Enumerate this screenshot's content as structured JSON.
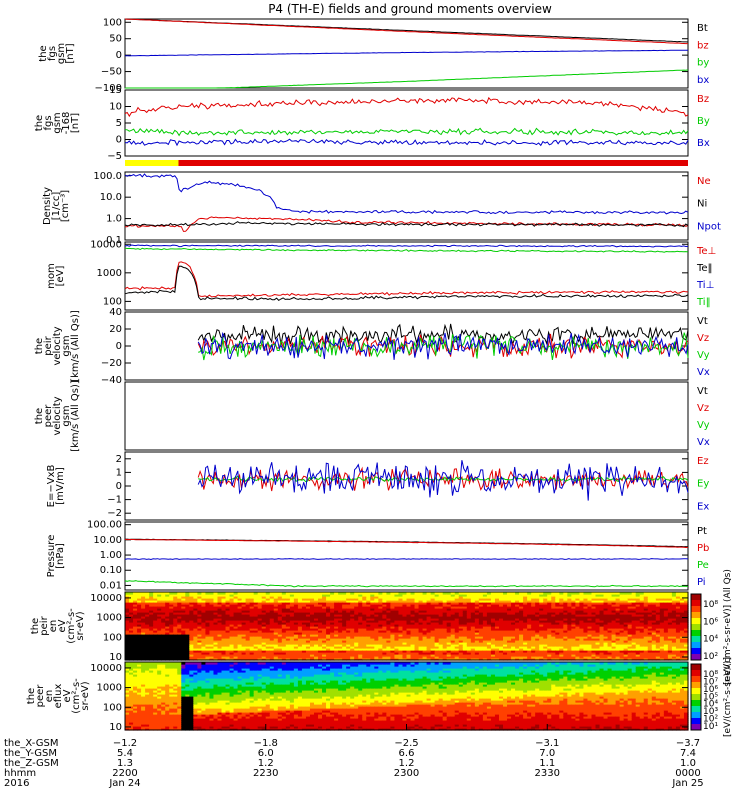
{
  "title": "P4 (TH-E) fields and ground moments overview",
  "colors": {
    "black": "#000000",
    "red": "#e00000",
    "green": "#00cc00",
    "blue": "#0000cc",
    "yellow": "#ffff00"
  },
  "chart_data": [
    {
      "type": "line",
      "id": "fgs",
      "ylabel_lines": [
        "the",
        "fgs",
        "gsm",
        "[nT]"
      ],
      "yticks": [
        {
          "v": 100,
          "t": "100"
        },
        {
          "v": 50,
          "t": "50"
        },
        {
          "v": 0,
          "t": "0"
        },
        {
          "v": -50,
          "t": "−50"
        },
        {
          "v": -100,
          "t": "−100"
        }
      ],
      "ylim": [
        -100,
        110
      ],
      "log": false,
      "series": [
        {
          "name": "Bt",
          "color": "black",
          "x": [
            0,
            0.5,
            1
          ],
          "y": [
            110,
            75,
            40
          ],
          "noise": 0.4
        },
        {
          "name": "bz",
          "color": "red",
          "x": [
            0,
            0.5,
            1
          ],
          "y": [
            110,
            72,
            35
          ],
          "noise": 0.4
        },
        {
          "name": "by",
          "color": "green",
          "x": [
            0,
            0.22,
            0.5,
            1
          ],
          "y": [
            -110,
            -97,
            -80,
            -45
          ],
          "noise": 0.4
        },
        {
          "name": "bx",
          "color": "blue",
          "x": [
            0,
            0.5,
            1
          ],
          "y": [
            -2,
            8,
            15
          ],
          "noise": 0.4
        }
      ]
    },
    {
      "type": "line",
      "id": "fgh",
      "ylabel_lines": [
        "the",
        "fgs",
        "gsm",
        "-168",
        "[nT]"
      ],
      "yticks": [
        {
          "v": 15,
          "t": "15"
        },
        {
          "v": 10,
          "t": "10"
        },
        {
          "v": 5,
          "t": "5"
        },
        {
          "v": 0,
          "t": "0"
        },
        {
          "v": -5,
          "t": "−5"
        }
      ],
      "ylim": [
        -5,
        15
      ],
      "log": false,
      "series": [
        {
          "name": "Bz",
          "color": "red",
          "x": [
            0,
            0.1,
            0.3,
            0.6,
            0.85,
            1
          ],
          "y": [
            8,
            10,
            11,
            12,
            11,
            8
          ],
          "noise": 0.7
        },
        {
          "name": "By",
          "color": "green",
          "x": [
            0,
            0.1,
            0.5,
            1
          ],
          "y": [
            3,
            2,
            2.5,
            2
          ],
          "noise": 0.7
        },
        {
          "name": "Bx",
          "color": "blue",
          "x": [
            0,
            0.3,
            0.6,
            1
          ],
          "y": [
            -1,
            -0.5,
            -1,
            -1
          ],
          "noise": 0.6
        }
      ]
    },
    {
      "type": "line",
      "id": "density",
      "ylabel_lines": [
        "Density",
        "[1/cc]",
        "[cm⁻³]"
      ],
      "yticks": [
        {
          "v": 100,
          "t": "100.0"
        },
        {
          "v": 10,
          "t": "10.0"
        },
        {
          "v": 1,
          "t": "1.0"
        },
        {
          "v": 0.1,
          "t": "0.1"
        }
      ],
      "ylim": [
        0.1,
        150
      ],
      "log": true,
      "series": [
        {
          "name": "Ne",
          "color": "red",
          "x": [
            0,
            0.1,
            0.105,
            0.13,
            0.16,
            0.25,
            0.4,
            0.6,
            1
          ],
          "y": [
            0.45,
            0.45,
            0.2,
            0.8,
            1.2,
            1.0,
            0.7,
            0.6,
            0.5
          ],
          "noise": 0.05
        },
        {
          "name": "Ni",
          "color": "black",
          "x": [
            0,
            0.1,
            0.2,
            0.4,
            1
          ],
          "y": [
            0.5,
            0.5,
            0.6,
            0.55,
            0.5
          ],
          "noise": 0.05
        },
        {
          "name": "Npot",
          "color": "blue",
          "x": [
            0,
            0.09,
            0.095,
            0.1,
            0.15,
            0.2,
            0.22,
            0.27,
            0.3,
            0.4,
            0.6,
            1
          ],
          "y": [
            100,
            100,
            25,
            20,
            50,
            35,
            30,
            3,
            2.2,
            2.1,
            2.0,
            1.9
          ],
          "noise": 0.06
        }
      ]
    },
    {
      "type": "line",
      "id": "temp",
      "ylabel_lines": [
        "mom",
        "[eV]"
      ],
      "yticks": [
        {
          "v": 10000,
          "t": "10000"
        },
        {
          "v": 1000,
          "t": "1000"
        },
        {
          "v": 100,
          "t": "100"
        }
      ],
      "ylim": [
        50,
        12000
      ],
      "log": true,
      "series": [
        {
          "name": "Te⊥",
          "color": "red",
          "x": [
            0,
            0.09,
            0.095,
            0.11,
            0.13,
            0.3,
            0.6,
            1
          ],
          "y": [
            280,
            300,
            2500,
            2000,
            150,
            170,
            200,
            220
          ],
          "noise": 0.04
        },
        {
          "name": "Te‖",
          "color": "black",
          "x": [
            0,
            0.09,
            0.095,
            0.11,
            0.13,
            0.3,
            0.6,
            1
          ],
          "y": [
            200,
            230,
            1800,
            1500,
            130,
            120,
            150,
            160
          ],
          "noise": 0.04
        },
        {
          "name": "Ti⊥",
          "color": "blue",
          "x": [
            0,
            1
          ],
          "y": [
            9000,
            8500
          ],
          "noise": 0.02
        },
        {
          "name": "Ti‖",
          "color": "green",
          "x": [
            0,
            0.3,
            1
          ],
          "y": [
            7000,
            6200,
            5500
          ],
          "noise": 0.02
        }
      ]
    },
    {
      "type": "line",
      "id": "peir",
      "ylabel_lines": [
        "the",
        "peir",
        "velocity",
        "gsm",
        "[km/s (All Qs)]"
      ],
      "yticks": [
        {
          "v": 40,
          "t": "40"
        },
        {
          "v": 20,
          "t": "20"
        },
        {
          "v": 0,
          "t": "0"
        },
        {
          "v": -20,
          "t": "−20"
        },
        {
          "v": -40,
          "t": "−40"
        }
      ],
      "ylim": [
        -40,
        40
      ],
      "log": false,
      "xstart": 0.13,
      "series": [
        {
          "name": "Vt",
          "color": "black",
          "x": [
            0.13,
            1
          ],
          "y": [
            12,
            14
          ],
          "noise": 6
        },
        {
          "name": "Vz",
          "color": "red",
          "x": [
            0.13,
            1
          ],
          "y": [
            0,
            0
          ],
          "noise": 7
        },
        {
          "name": "Vy",
          "color": "green",
          "x": [
            0.13,
            1
          ],
          "y": [
            0,
            0
          ],
          "noise": 8
        },
        {
          "name": "Vx",
          "color": "blue",
          "x": [
            0.13,
            1
          ],
          "y": [
            0,
            0
          ],
          "noise": 8
        }
      ]
    },
    {
      "type": "line",
      "id": "peer",
      "ylabel_lines": [
        "the",
        "peer",
        "velocity",
        "gsm",
        "[km/s (All Qs)]"
      ],
      "yticks": [],
      "ylim": [
        -1,
        1
      ],
      "log": false,
      "series": [
        {
          "name": "Vt",
          "color": "black",
          "x": [],
          "y": []
        },
        {
          "name": "Vz",
          "color": "red",
          "x": [],
          "y": []
        },
        {
          "name": "Vy",
          "color": "green",
          "x": [],
          "y": []
        },
        {
          "name": "Vx",
          "color": "blue",
          "x": [],
          "y": []
        }
      ]
    },
    {
      "type": "line",
      "id": "efield",
      "ylabel_lines": [
        "E=−VxB",
        "[mV/m]"
      ],
      "yticks": [
        {
          "v": 2,
          "t": "2"
        },
        {
          "v": 1,
          "t": "1"
        },
        {
          "v": 0,
          "t": "0"
        },
        {
          "v": -1,
          "t": "−1"
        },
        {
          "v": -2,
          "t": "−2"
        }
      ],
      "ylim": [
        -2.5,
        2.5
      ],
      "log": false,
      "xstart": 0.13,
      "series": [
        {
          "name": "Ez",
          "color": "red",
          "x": [
            0.13,
            1
          ],
          "y": [
            0.5,
            0.5
          ],
          "noise": 0.4
        },
        {
          "name": "Ey",
          "color": "green",
          "x": [
            0.13,
            1
          ],
          "y": [
            0.5,
            0.5
          ],
          "noise": 0.1
        },
        {
          "name": "Ex",
          "color": "blue",
          "x": [
            0.13,
            1
          ],
          "y": [
            0.5,
            0.5
          ],
          "noise": 0.7
        }
      ]
    },
    {
      "type": "line",
      "id": "pressure",
      "ylabel_lines": [
        "Pressure",
        "[nPa]"
      ],
      "yticks": [
        {
          "v": 100,
          "t": "100.00"
        },
        {
          "v": 10,
          "t": "10.00"
        },
        {
          "v": 1,
          "t": "1.00"
        },
        {
          "v": 0.1,
          "t": "0.10"
        },
        {
          "v": 0.01,
          "t": "0.01"
        }
      ],
      "ylim": [
        0.005,
        150
      ],
      "log": true,
      "series": [
        {
          "name": "Pt",
          "color": "black",
          "x": [
            0,
            1
          ],
          "y": [
            11,
            3.5
          ],
          "noise": 0.01
        },
        {
          "name": "Pb",
          "color": "red",
          "x": [
            0,
            1
          ],
          "y": [
            10.5,
            3.2
          ],
          "noise": 0.01
        },
        {
          "name": "Pe",
          "color": "green",
          "x": [
            0,
            0.1,
            0.3,
            1
          ],
          "y": [
            0.02,
            0.015,
            0.009,
            0.009
          ],
          "noise": 0.03
        },
        {
          "name": "Pi",
          "color": "blue",
          "x": [
            0,
            1
          ],
          "y": [
            0.55,
            0.55
          ],
          "noise": 0.02
        }
      ]
    },
    {
      "type": "heatmap",
      "id": "peir_en",
      "ylabel_lines": [
        "the",
        "peir",
        "en",
        "eV",
        "(cm²-s-",
        "sr-eV)"
      ],
      "yticks": [
        {
          "v": 10000,
          "t": "10000"
        },
        {
          "v": 1000,
          "t": "1000"
        },
        {
          "v": 100,
          "t": "100"
        },
        {
          "v": 10,
          "t": "10"
        }
      ],
      "ylim": [
        7,
        20000
      ],
      "log": true
    },
    {
      "type": "heatmap",
      "id": "peer_en",
      "ylabel_lines": [
        "the",
        "peer",
        "en",
        "eflux",
        "eV",
        "(cm²-s-",
        "sr-eV)"
      ],
      "yticks": [
        {
          "v": 10000,
          "t": "10000"
        },
        {
          "v": 1000,
          "t": "1000"
        },
        {
          "v": 100,
          "t": "100"
        },
        {
          "v": 10,
          "t": "10"
        }
      ],
      "ylim": [
        7,
        20000
      ],
      "log": true
    }
  ],
  "colorbar_upper": {
    "ticks": [
      "10⁸",
      "10⁶",
      "10⁴",
      "10²"
    ]
  },
  "colorbar_lower": {
    "ticks": [
      "10⁸",
      "10⁷",
      "10⁶",
      "10⁵",
      "10⁴",
      "10³",
      "10²",
      "10¹"
    ]
  },
  "colorbar_label": "[eV/(cm²-s-sr-eV)] (All Qs)",
  "colorbar_label2": "[eV/(cm²-s-sr-eV)]",
  "status_bar": {
    "segments": [
      {
        "from": 0,
        "to": 0.095,
        "color": "yellow"
      },
      {
        "from": 0.095,
        "to": 1,
        "color": "red"
      }
    ]
  },
  "xaxis": {
    "rows": [
      {
        "label": "the_X-GSM",
        "values": [
          "−1.2",
          "−1.8",
          "−2.5",
          "−3.1",
          "−3.7"
        ]
      },
      {
        "label": "the_Y-GSM",
        "values": [
          "5.4",
          "6.0",
          "6.6",
          "7.0",
          "7.4"
        ]
      },
      {
        "label": "the_Z-GSM",
        "values": [
          "1.3",
          "1.2",
          "1.2",
          "1.1",
          "1.0"
        ]
      },
      {
        "label": "hhmm",
        "values": [
          "2200",
          "2230",
          "2300",
          "2330",
          "0000"
        ]
      },
      {
        "label": "2016",
        "values": [
          "Jan 24",
          "",
          "",
          "",
          "Jan 25"
        ]
      }
    ]
  }
}
